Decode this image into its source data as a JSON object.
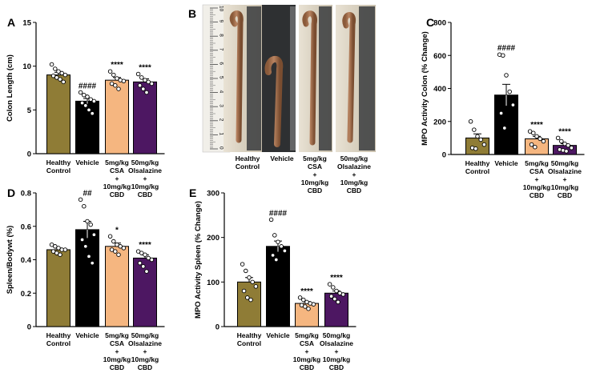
{
  "colors": {
    "healthy": "#8f7c36",
    "vehicle": "#000000",
    "csa": "#f5b680",
    "olsa": "#4d1762"
  },
  "chart_data": [
    {
      "panel": "A",
      "type": "bar",
      "ylabel": "Colon Length (cm)",
      "ylim": [
        0,
        15
      ],
      "yticks": [
        0,
        5,
        10,
        15
      ],
      "categories": [
        [
          "Healthy",
          "Control"
        ],
        [
          "Vehicle"
        ],
        [
          "5mg/kg",
          "CSA",
          "+",
          "10mg/kg",
          "CBD"
        ],
        [
          "50mg/kg",
          "Olsalazine",
          "+",
          "10mg/kg",
          "CBD"
        ]
      ],
      "values": [
        9.0,
        6.0,
        8.4,
        8.2
      ],
      "errors": [
        0.3,
        0.3,
        0.3,
        0.35
      ],
      "annotations": [
        "",
        "####",
        "****",
        "****"
      ],
      "points": [
        [
          10.2,
          9.7,
          9.4,
          9.2,
          9.0,
          8.9,
          8.7,
          8.5,
          8.2
        ],
        [
          7.0,
          6.7,
          6.5,
          6.2,
          6.0,
          5.8,
          5.5,
          5.0,
          4.6
        ],
        [
          9.4,
          9.0,
          8.6,
          8.4,
          8.3,
          8.0,
          7.8,
          7.4
        ],
        [
          9.1,
          8.7,
          8.4,
          8.2,
          8.0,
          7.8,
          7.4,
          7.0
        ]
      ]
    },
    {
      "panel": "C",
      "type": "bar",
      "ylabel": "MPO Activity Colon (% Change)",
      "ylim": [
        0,
        800
      ],
      "yticks": [
        0,
        200,
        400,
        600,
        800
      ],
      "categories": [
        [
          "Healthy",
          "Control"
        ],
        [
          "Vehicle"
        ],
        [
          "5mg/kg",
          "CSA",
          "+",
          "10mg/kg",
          "CBD"
        ],
        [
          "50mg/kg",
          "Olsalazine",
          "+",
          "10mg/kg",
          "CBD"
        ]
      ],
      "values": [
        100,
        360,
        95,
        55
      ],
      "errors": [
        25,
        65,
        15,
        10
      ],
      "annotations": [
        "",
        "####",
        "****",
        "****"
      ],
      "points": [
        [
          200,
          150,
          110,
          90,
          60,
          40,
          35
        ],
        [
          605,
          600,
          480,
          380,
          300,
          250,
          160
        ],
        [
          140,
          130,
          110,
          95,
          80,
          60,
          45
        ],
        [
          100,
          80,
          65,
          55,
          40,
          30,
          25,
          20
        ]
      ]
    },
    {
      "panel": "D",
      "type": "bar",
      "ylabel": "Spleen/Bodywt (%)",
      "ylim": [
        0,
        0.8
      ],
      "yticks": [
        0,
        0.2,
        0.4,
        0.6,
        0.8
      ],
      "categories": [
        [
          "Healthy",
          "Control"
        ],
        [
          "Vehicle"
        ],
        [
          "5mg/kg",
          "CSA",
          "+",
          "10mg/kg",
          "CBD"
        ],
        [
          "50mg/kg",
          "Olsalazine",
          "+",
          "10mg/kg",
          "CBD"
        ]
      ],
      "values": [
        0.46,
        0.58,
        0.48,
        0.41
      ],
      "errors": [
        0.01,
        0.05,
        0.02,
        0.02
      ],
      "annotations": [
        "",
        "##",
        "*",
        "****"
      ],
      "points": [
        [
          0.49,
          0.48,
          0.47,
          0.46,
          0.46,
          0.45,
          0.44,
          0.43
        ],
        [
          0.76,
          0.72,
          0.63,
          0.61,
          0.55,
          0.52,
          0.48,
          0.42,
          0.38
        ],
        [
          0.54,
          0.51,
          0.49,
          0.48,
          0.47,
          0.46,
          0.45,
          0.43
        ],
        [
          0.45,
          0.44,
          0.43,
          0.41,
          0.4,
          0.38,
          0.36,
          0.33
        ]
      ]
    },
    {
      "panel": "E",
      "type": "bar",
      "ylabel": "MPO Activity Spleen (% Change)",
      "ylim": [
        0,
        300
      ],
      "yticks": [
        0,
        100,
        200,
        300
      ],
      "categories": [
        [
          "Healthy",
          "Control"
        ],
        [
          "Vehicle"
        ],
        [
          "5mg/kg",
          "CSA",
          "+",
          "10mg/kg",
          "CBD"
        ],
        [
          "50mg/kg",
          "Olsalazine",
          "+",
          "10mg/kg",
          "CBD"
        ]
      ],
      "values": [
        100,
        180,
        52,
        75
      ],
      "errors": [
        10,
        12,
        4,
        5
      ],
      "annotations": [
        "",
        "####",
        "****",
        "****"
      ],
      "points": [
        [
          140,
          125,
          110,
          100,
          90,
          80,
          65,
          60
        ],
        [
          240,
          205,
          190,
          180,
          170,
          160,
          150
        ],
        [
          65,
          60,
          55,
          52,
          50,
          48,
          45,
          40
        ],
        [
          95,
          88,
          80,
          75,
          72,
          68,
          62,
          55
        ]
      ]
    }
  ],
  "panel_b": {
    "label": "B",
    "categories": [
      [
        "Healthy",
        "Control"
      ],
      [
        "Vehicle"
      ],
      [
        "5mg/kg",
        "CSA",
        "+",
        "10mg/kg",
        "CBD"
      ],
      [
        "50mg/kg",
        "Olsalazine",
        "+",
        "10mg/kg",
        "CBD"
      ]
    ],
    "ruler_ticks": [
      "0",
      "1",
      "2",
      "3",
      "4",
      "5",
      "6",
      "7",
      "8",
      "9",
      "10"
    ]
  }
}
